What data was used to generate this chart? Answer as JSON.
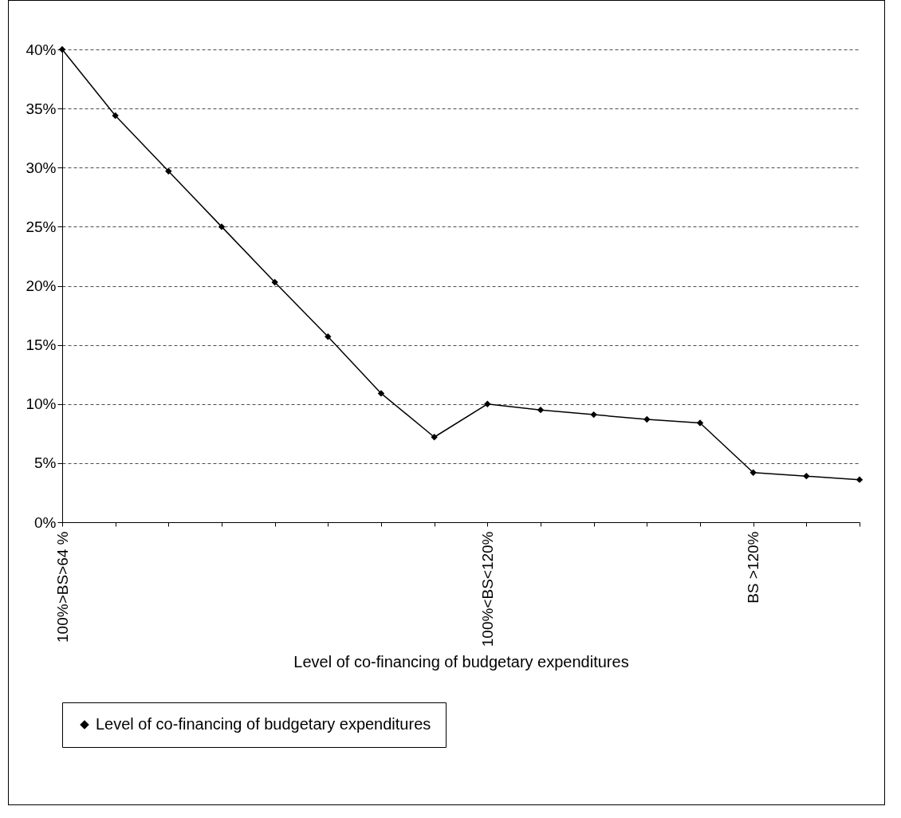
{
  "chart_data": {
    "type": "line",
    "xlabel": "Level of co-financing of budgetary expenditures",
    "categories": [
      "100%>BS>64 %",
      null,
      null,
      null,
      null,
      null,
      null,
      null,
      "100%<BS<120%",
      null,
      null,
      null,
      null,
      "BS >120%",
      null,
      null
    ],
    "series": [
      {
        "name": "Level of co-financing of budgetary expenditures",
        "color": "#000000",
        "values": [
          40,
          34.4,
          29.7,
          25,
          20.3,
          15.7,
          10.9,
          7.2,
          10,
          9.5,
          9.1,
          8.7,
          8.4,
          4.2,
          3.9,
          3.6
        ]
      }
    ],
    "ylim": [
      0,
      40
    ],
    "yticks": [
      {
        "value": 0,
        "label": "0%"
      },
      {
        "value": 5,
        "label": "5%"
      },
      {
        "value": 10,
        "label": "10%"
      },
      {
        "value": 15,
        "label": "15%"
      },
      {
        "value": 20,
        "label": "20%"
      },
      {
        "value": 25,
        "label": "25%"
      },
      {
        "value": 30,
        "label": "30%"
      },
      {
        "value": 35,
        "label": "35%"
      },
      {
        "value": 40,
        "label": "40%"
      }
    ],
    "grid": "y",
    "legend": "bottom",
    "marker": "diamond",
    "line_style": "solid"
  }
}
